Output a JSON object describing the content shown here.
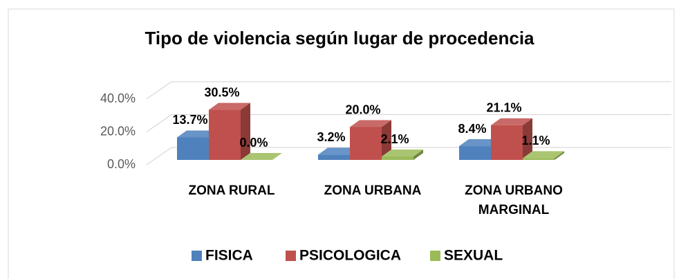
{
  "chart_data": {
    "type": "bar3d",
    "title": "Tipo de violencia según lugar de procedencia",
    "categories": [
      "ZONA RURAL",
      "ZONA URBANA",
      "ZONA URBANO MARGINAL"
    ],
    "series": [
      {
        "name": "FISICA",
        "color": "#4f81bd",
        "values": [
          13.7,
          3.2,
          8.4
        ],
        "value_labels": [
          "13.7%",
          "3.2%",
          "8.4%"
        ]
      },
      {
        "name": "PSICOLOGICA",
        "color": "#c0504d",
        "values": [
          30.5,
          20.0,
          21.1
        ],
        "value_labels": [
          "30.5%",
          "20.0%",
          "21.1%"
        ]
      },
      {
        "name": "SEXUAL",
        "color": "#9bbb59",
        "values": [
          0.0,
          2.1,
          1.1
        ],
        "value_labels": [
          "0.0%",
          "2.1%",
          "1.1%"
        ]
      }
    ],
    "ylim": [
      0,
      40
    ],
    "yticks": [
      {
        "value": 0,
        "label": "0.0%"
      },
      {
        "value": 20,
        "label": "20.0%"
      },
      {
        "value": 40,
        "label": "40.0%"
      }
    ],
    "grid": true,
    "legend": "bottom"
  }
}
